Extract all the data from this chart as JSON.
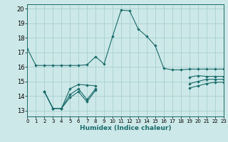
{
  "xlabel": "Humidex (Indice chaleur)",
  "bg_color": "#cde8e8",
  "grid_color": "#a8d0d0",
  "line_color": "#1a6b6b",
  "xlim": [
    0,
    23
  ],
  "ylim": [
    12.6,
    20.3
  ],
  "yticks": [
    13,
    14,
    15,
    16,
    17,
    18,
    19,
    20
  ],
  "xticks": [
    0,
    1,
    2,
    3,
    4,
    5,
    6,
    7,
    8,
    9,
    10,
    11,
    12,
    13,
    14,
    15,
    16,
    17,
    18,
    19,
    20,
    21,
    22,
    23
  ],
  "series": [
    {
      "x": [
        0,
        1,
        2,
        3,
        4,
        5,
        6,
        7,
        8,
        9,
        10,
        11,
        12,
        13,
        14,
        15,
        16,
        17,
        18,
        19,
        20,
        21,
        22,
        23
      ],
      "y": [
        17.25,
        16.1,
        16.1,
        16.1,
        16.1,
        16.1,
        16.1,
        16.15,
        16.7,
        16.2,
        18.1,
        19.9,
        19.85,
        18.6,
        18.1,
        17.45,
        15.9,
        15.8,
        15.8,
        15.85,
        15.85,
        15.85,
        15.85,
        15.85
      ]
    },
    {
      "x": [
        2,
        3,
        4,
        5,
        6,
        7,
        8,
        19,
        20,
        21,
        22,
        23
      ],
      "y": [
        14.3,
        13.15,
        13.15,
        14.5,
        14.8,
        14.75,
        14.7,
        15.3,
        15.4,
        15.35,
        15.35,
        15.35
      ],
      "split": 8
    },
    {
      "x": [
        2,
        3,
        4,
        5,
        6,
        7,
        8,
        19,
        20,
        21,
        22,
        23
      ],
      "y": [
        14.3,
        13.15,
        13.15,
        14.1,
        14.5,
        13.75,
        14.5,
        14.85,
        15.0,
        15.15,
        15.15,
        15.15
      ],
      "split": 8
    },
    {
      "x": [
        2,
        3,
        4,
        5,
        6,
        7,
        8,
        19,
        20,
        21,
        22,
        23
      ],
      "y": [
        14.3,
        13.15,
        13.15,
        13.9,
        14.3,
        13.6,
        14.4,
        14.55,
        14.7,
        14.85,
        14.95,
        14.95
      ],
      "split": 8
    }
  ]
}
